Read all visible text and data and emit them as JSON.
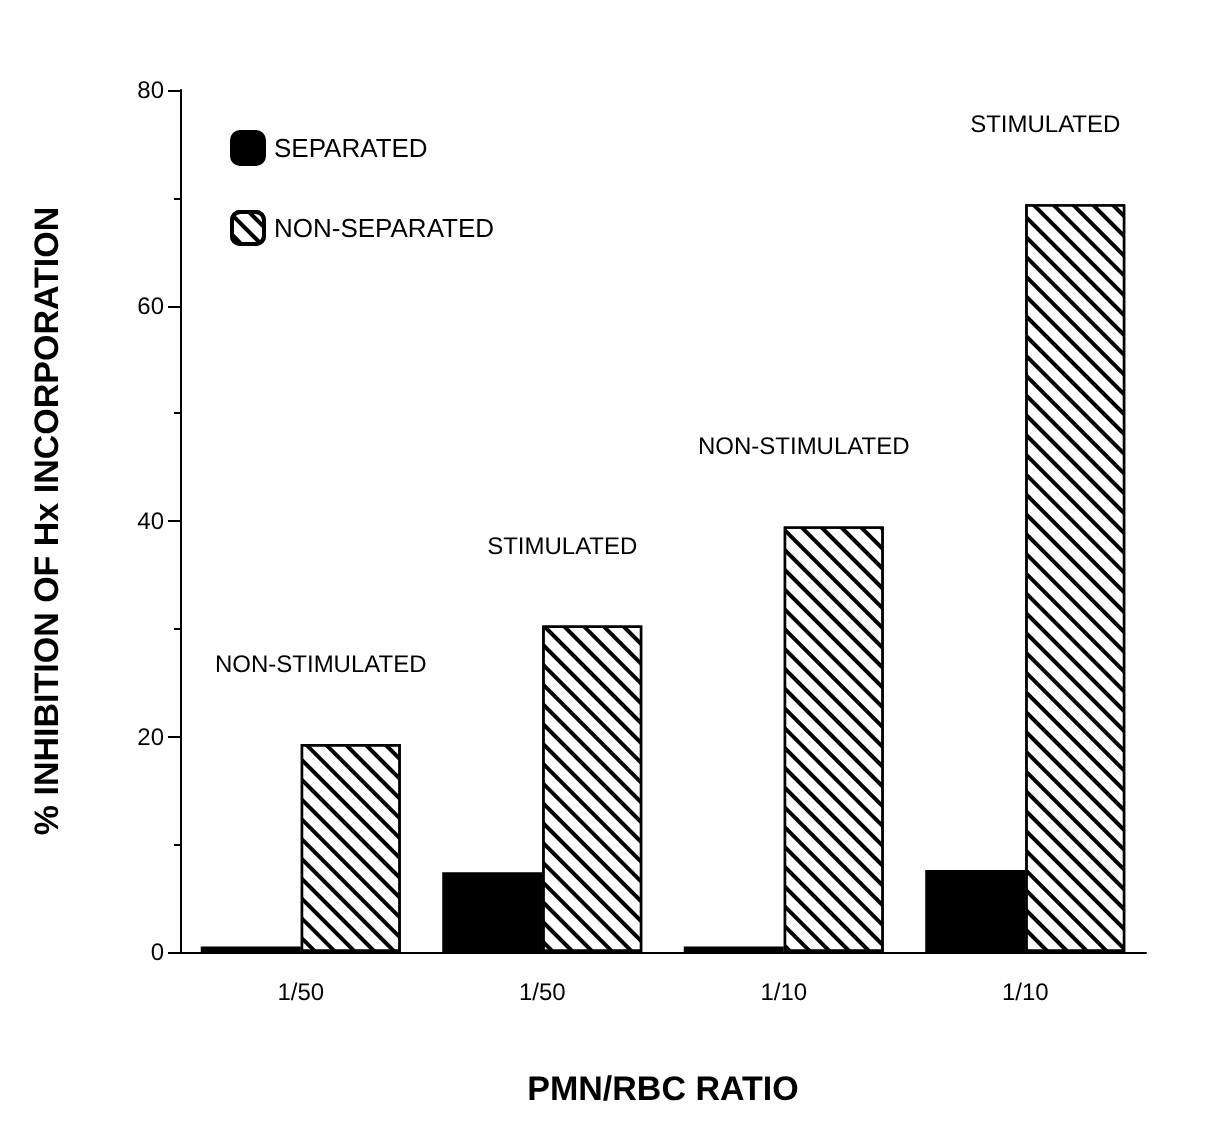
{
  "chart_data": {
    "type": "bar",
    "xlabel": "PMN/RBC RATIO",
    "ylabel": "% INHIBITION OF Hx INCORPORATION",
    "categories": [
      "1/50",
      "1/50",
      "1/10",
      "1/10"
    ],
    "series": [
      {
        "name": "SEPARATED",
        "color": "#000000",
        "values": [
          0.5,
          7.4,
          0.5,
          7.6
        ]
      },
      {
        "name": "NON-SEPARATED",
        "color": "#ffffff",
        "values": [
          19.3,
          30.3,
          39.5,
          69.4
        ]
      }
    ],
    "annotations": [
      "NON-STIMULATED",
      "STIMULATED",
      "NON-STIMULATED",
      "STIMULATED"
    ],
    "ylim": [
      0,
      80
    ],
    "yticks": [
      0,
      20,
      40,
      60,
      80
    ],
    "grid": false,
    "legend": "top left"
  }
}
